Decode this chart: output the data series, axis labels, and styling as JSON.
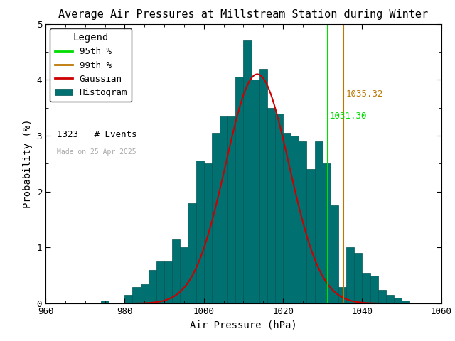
{
  "title": "Average Air Pressures at Millstream Station during Winter",
  "xlabel": "Air Pressure (hPa)",
  "ylabel": "Probability (%)",
  "xlim": [
    960,
    1060
  ],
  "ylim": [
    0,
    5
  ],
  "xticks": [
    960,
    980,
    1000,
    1020,
    1040,
    1060
  ],
  "yticks": [
    0,
    1,
    2,
    3,
    4,
    5
  ],
  "n_events": 1323,
  "mean": 1013.5,
  "std": 8.0,
  "gauss_peak": 4.1,
  "pct95": 1031.3,
  "pct99": 1035.32,
  "pct95_label": "1031.30",
  "pct99_label": "1035.32",
  "pct95_color": "#00dd00",
  "pct99_color": "#bb7700",
  "gaussian_color": "#cc0000",
  "hist_color": "#007070",
  "hist_edge_color": "#005555",
  "date_text": "Made on 25 Apr 2025",
  "date_color": "#aaaaaa",
  "background_color": "#ffffff",
  "bin_width": 2,
  "bin_edges": [
    960,
    962,
    964,
    966,
    968,
    970,
    972,
    974,
    976,
    978,
    980,
    982,
    984,
    986,
    988,
    990,
    992,
    994,
    996,
    998,
    1000,
    1002,
    1004,
    1006,
    1008,
    1010,
    1012,
    1014,
    1016,
    1018,
    1020,
    1022,
    1024,
    1026,
    1028,
    1030,
    1032,
    1034,
    1036,
    1038,
    1040,
    1042,
    1044,
    1046,
    1048,
    1050,
    1052,
    1054,
    1056,
    1058,
    1060
  ],
  "bar_heights": [
    0.0,
    0.0,
    0.0,
    0.0,
    0.0,
    0.0,
    0.0,
    0.05,
    0.0,
    0.0,
    0.15,
    0.3,
    0.35,
    0.6,
    0.75,
    0.75,
    1.15,
    1.0,
    1.8,
    2.55,
    2.5,
    3.05,
    3.35,
    3.35,
    4.05,
    4.7,
    4.0,
    4.2,
    3.5,
    3.4,
    3.05,
    3.0,
    2.9,
    2.4,
    2.9,
    2.5,
    1.75,
    0.3,
    1.0,
    0.9,
    0.55,
    0.5,
    0.25,
    0.15,
    0.1,
    0.05,
    0.0,
    0.0,
    0.0,
    0.0
  ],
  "legend_title_fontsize": 10,
  "legend_fontsize": 9,
  "axis_fontsize": 10,
  "title_fontsize": 11,
  "tick_labelsize": 9
}
